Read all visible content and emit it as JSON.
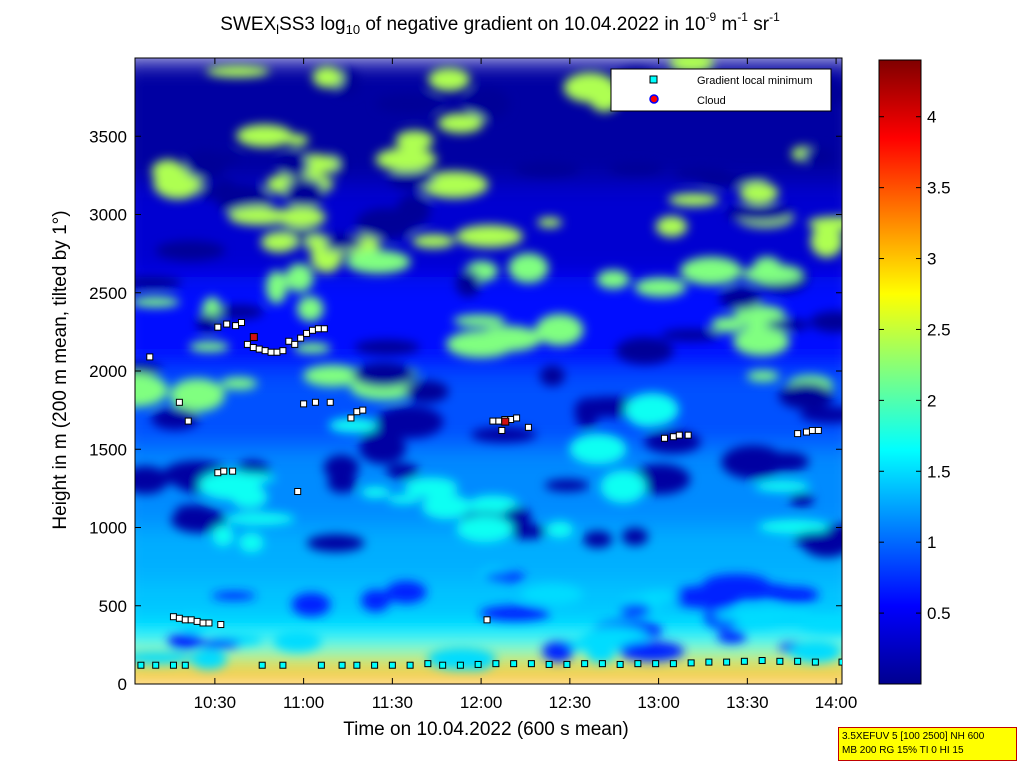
{
  "chart_data": {
    "type": "heatmap",
    "title": {
      "part1": "SWEX",
      "sub1": "l",
      "part2": "SS3 log",
      "sub2": "10",
      "part3": " of negative gradient on 10.04.2022 in 10",
      "sup1": "-9",
      "part4": " m",
      "sup2": "-1",
      "part5": " sr",
      "sup3": "-1"
    },
    "xlabel": "Time on 10.04.2022 (600 s mean)",
    "ylabel": "Height in m (200 m mean, tilted by 1°)",
    "x_ticks": [
      "10:30",
      "11:00",
      "11:30",
      "12:00",
      "12:30",
      "13:00",
      "13:30",
      "14:00"
    ],
    "x_tick_minutes": [
      630,
      660,
      690,
      720,
      750,
      780,
      810,
      840
    ],
    "xlim_minutes": [
      603,
      842
    ],
    "y_ticks": [
      "0",
      "500",
      "1000",
      "1500",
      "2000",
      "2500",
      "3000",
      "3500"
    ],
    "y_tick_values": [
      0,
      500,
      1000,
      1500,
      2000,
      2500,
      3000,
      3500
    ],
    "ylim": [
      0,
      4000
    ],
    "colorbar": {
      "ticks": [
        "0.5",
        "1",
        "1.5",
        "2",
        "2.5",
        "3",
        "3.5",
        "4"
      ],
      "tick_values": [
        0.5,
        1,
        1.5,
        2,
        2.5,
        3,
        3.5,
        4
      ],
      "range": [
        0,
        4.4
      ],
      "colormap": "jet"
    },
    "legend": {
      "placement": "top-right",
      "entries": [
        {
          "label": "Gradient local minimum",
          "marker": "square",
          "color": "#00ffff"
        },
        {
          "label": "Cloud",
          "marker": "circle",
          "color": "#ff0000"
        }
      ]
    },
    "grid": false,
    "gradient_local_minimum": [
      [
        608,
        2090
      ],
      [
        618,
        1800
      ],
      [
        621,
        1680
      ],
      [
        631,
        2280
      ],
      [
        634,
        2300
      ],
      [
        637,
        2290
      ],
      [
        639,
        2310
      ],
      [
        641,
        2170
      ],
      [
        643,
        2150
      ],
      [
        645,
        2140
      ],
      [
        647,
        2130
      ],
      [
        649,
        2120
      ],
      [
        651,
        2120
      ],
      [
        653,
        2130
      ],
      [
        655,
        2190
      ],
      [
        657,
        2170
      ],
      [
        659,
        2210
      ],
      [
        661,
        2240
      ],
      [
        663,
        2260
      ],
      [
        665,
        2270
      ],
      [
        667,
        2270
      ],
      [
        660,
        1790
      ],
      [
        664,
        1800
      ],
      [
        669,
        1800
      ],
      [
        676,
        1700
      ],
      [
        678,
        1740
      ],
      [
        680,
        1750
      ],
      [
        631,
        1350
      ],
      [
        633,
        1360
      ],
      [
        636,
        1360
      ],
      [
        658,
        1230
      ],
      [
        616,
        430
      ],
      [
        618,
        420
      ],
      [
        620,
        410
      ],
      [
        622,
        410
      ],
      [
        624,
        400
      ],
      [
        626,
        390
      ],
      [
        628,
        390
      ],
      [
        632,
        380
      ],
      [
        724,
        1680
      ],
      [
        726,
        1680
      ],
      [
        728,
        1690
      ],
      [
        730,
        1690
      ],
      [
        732,
        1700
      ],
      [
        727,
        1620
      ],
      [
        736,
        1640
      ],
      [
        782,
        1570
      ],
      [
        785,
        1580
      ],
      [
        787,
        1590
      ],
      [
        790,
        1590
      ],
      [
        827,
        1600
      ],
      [
        830,
        1610
      ],
      [
        832,
        1620
      ],
      [
        834,
        1620
      ],
      [
        722,
        410
      ],
      [
        605,
        120
      ],
      [
        610,
        120
      ],
      [
        616,
        120
      ],
      [
        620,
        120
      ],
      [
        646,
        120
      ],
      [
        653,
        120
      ],
      [
        666,
        120
      ],
      [
        673,
        120
      ],
      [
        678,
        120
      ],
      [
        684,
        120
      ],
      [
        690,
        120
      ],
      [
        696,
        120
      ],
      [
        702,
        130
      ],
      [
        707,
        120
      ],
      [
        713,
        120
      ],
      [
        719,
        125
      ],
      [
        725,
        130
      ],
      [
        731,
        130
      ],
      [
        737,
        130
      ],
      [
        743,
        125
      ],
      [
        749,
        125
      ],
      [
        755,
        130
      ],
      [
        761,
        130
      ],
      [
        767,
        125
      ],
      [
        773,
        130
      ],
      [
        779,
        130
      ],
      [
        785,
        130
      ],
      [
        791,
        135
      ],
      [
        797,
        140
      ],
      [
        803,
        140
      ],
      [
        809,
        145
      ],
      [
        815,
        150
      ],
      [
        821,
        145
      ],
      [
        827,
        145
      ],
      [
        833,
        140
      ],
      [
        842,
        140
      ]
    ],
    "cloud": [
      [
        643,
        2220
      ],
      [
        728,
        1680
      ]
    ]
  },
  "settings_box": {
    "line1": "3.5XEFUV 5 [100 2500] NH 600",
    "line2": "MB 200 RG 15% TI 0 HI 15"
  }
}
